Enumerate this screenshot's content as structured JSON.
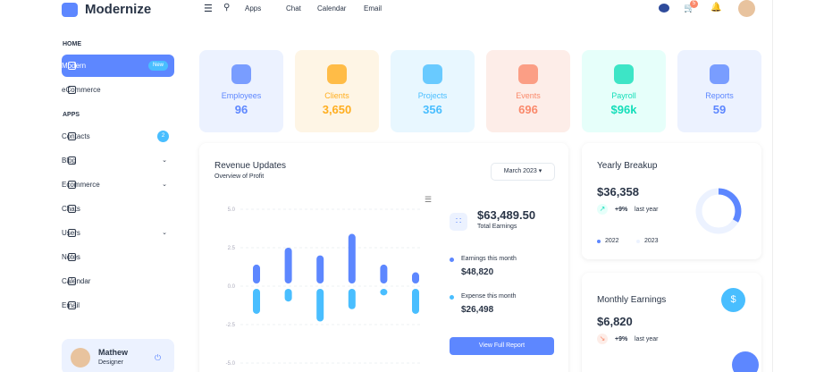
{
  "brand": "Modernize",
  "topnav": [
    "Apps",
    "Chat",
    "Calendar",
    "Email"
  ],
  "cart_badge": "5",
  "sidebar": {
    "sections": [
      {
        "title": "HOME",
        "items": [
          {
            "label": "Modern",
            "badge": "New"
          },
          {
            "label": "eCommerce"
          }
        ]
      },
      {
        "title": "APPS",
        "items": [
          {
            "label": "Contacts",
            "badge": "2"
          },
          {
            "label": "Blog"
          },
          {
            "label": "Ecommerce"
          },
          {
            "label": "Chats"
          },
          {
            "label": "Users"
          },
          {
            "label": "Notes"
          },
          {
            "label": "Calendar"
          },
          {
            "label": "Email"
          }
        ]
      }
    ],
    "profile": {
      "name": "Mathew",
      "role": "Designer"
    }
  },
  "stats": [
    {
      "label": "Employees",
      "value": "96"
    },
    {
      "label": "Clients",
      "value": "3,650"
    },
    {
      "label": "Projects",
      "value": "356"
    },
    {
      "label": "Events",
      "value": "696"
    },
    {
      "label": "Payroll",
      "value": "$96k"
    },
    {
      "label": "Reports",
      "value": "59"
    }
  ],
  "revenue": {
    "title": "Revenue Updates",
    "subtitle": "Overview of Profit",
    "period": "March 2023",
    "total": "$63,489.50",
    "total_label": "Total Earnings",
    "earnings_label": "Earnings this month",
    "earnings": "$48,820",
    "expense_label": "Expense this month",
    "expense": "$26,498",
    "button": "View Full Report"
  },
  "yearly": {
    "title": "Yearly Breakup",
    "amount": "$36,358",
    "change": "+9%",
    "change_label": "last year",
    "legend": [
      "2022",
      "2023"
    ]
  },
  "monthly": {
    "title": "Monthly Earnings",
    "amount": "$6,820",
    "change": "+9%",
    "change_label": "last year"
  },
  "chart_data": {
    "type": "bar",
    "series": [
      {
        "color": "#5d87ff",
        "values": [
          1.4,
          2.5,
          2.0,
          3.4,
          1.4,
          0.9
        ]
      },
      {
        "color": "#49beff",
        "values": [
          -1.8,
          -1.0,
          -2.3,
          -1.5,
          -0.6,
          -1.8
        ]
      }
    ],
    "ylim": [
      -5,
      5
    ],
    "yticks": [
      {
        "value": 5,
        "label": "5.0"
      },
      {
        "value": 2.5,
        "label": "2.5"
      },
      {
        "value": 0,
        "label": "0.0"
      },
      {
        "value": -2.5,
        "label": "-2.5"
      },
      {
        "value": -5,
        "label": "-5.0"
      }
    ]
  }
}
